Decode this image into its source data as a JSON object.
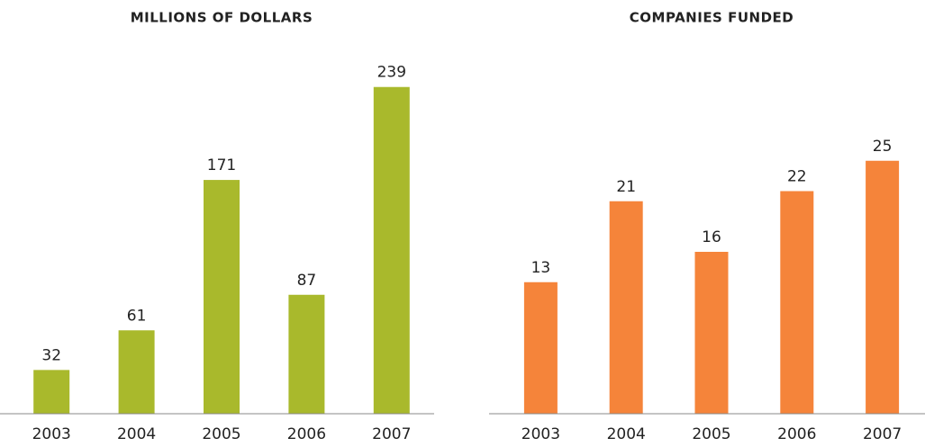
{
  "chart_data": [
    {
      "type": "bar",
      "title": "MILLIONS OF DOLLARS",
      "categories": [
        "2003",
        "2004",
        "2005",
        "2006",
        "2007"
      ],
      "values": [
        32,
        61,
        171,
        87,
        239
      ],
      "color": "#a9b92c",
      "ylim": [
        0,
        250
      ]
    },
    {
      "type": "bar",
      "title": "COMPANIES FUNDED",
      "categories": [
        "2003",
        "2004",
        "2005",
        "2006",
        "2007"
      ],
      "values": [
        13,
        21,
        16,
        22,
        25
      ],
      "color": "#f5843a",
      "ylim": [
        0,
        32
      ]
    }
  ]
}
